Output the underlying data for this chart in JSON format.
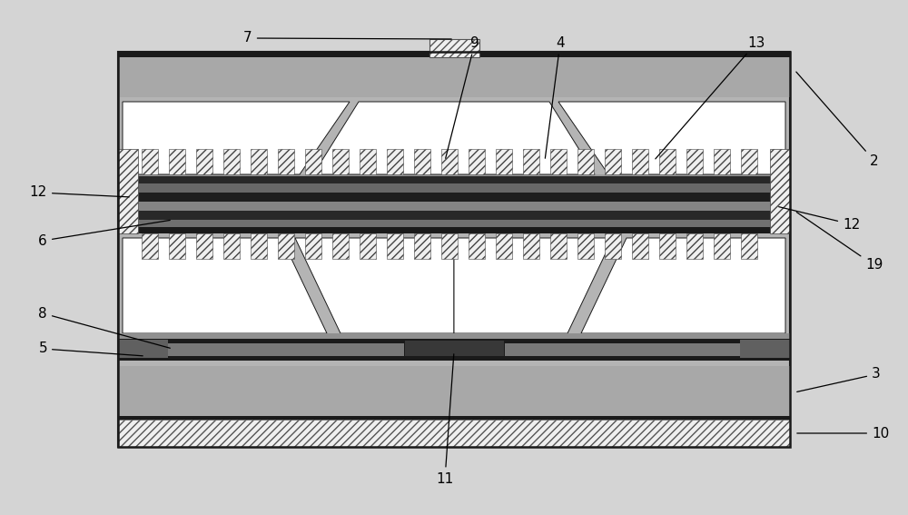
{
  "fig_w": 10.0,
  "fig_h": 5.67,
  "dpi": 100,
  "fig_bg": "#d4d4d4",
  "C_bg": "#b4b4b4",
  "C_dark": "#1a1a1a",
  "C_gray1": "#888888",
  "C_gray2": "#a8a8a8",
  "C_gray3": "#c0c0c0",
  "C_white": "#ffffff",
  "C_hatch_bg": "#efefef",
  "C_border": "#1a1a1a",
  "C_med_dark": "#505050",
  "label_fs": 11,
  "arrow_lw": 0.9,
  "OX": 130,
  "OY": 75,
  "OW": 740,
  "OH": 435
}
